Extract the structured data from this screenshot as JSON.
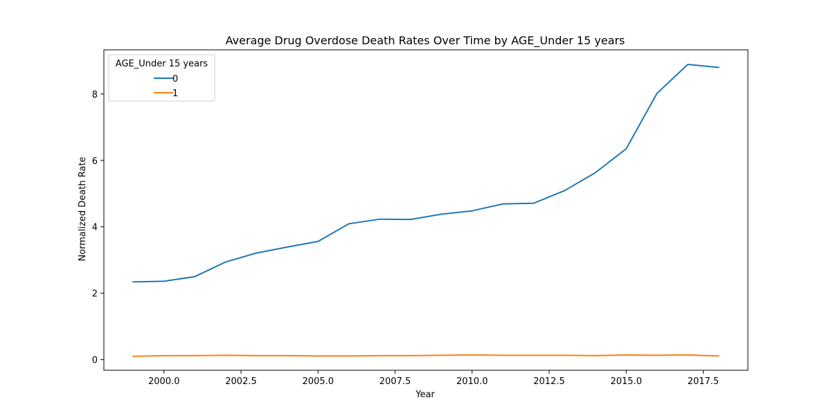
{
  "chart_data": {
    "type": "line",
    "title": "Average Drug Overdose Death Rates Over Time by AGE_Under 15 years",
    "xlabel": "Year",
    "ylabel": "Normalized Death Rate",
    "xlim": [
      1998.05,
      2018.95
    ],
    "ylim": [
      -0.32,
      9.33
    ],
    "x_ticks": [
      2000.0,
      2002.5,
      2005.0,
      2007.5,
      2010.0,
      2012.5,
      2015.0,
      2017.5
    ],
    "x_tick_labels": [
      "2000.0",
      "2002.5",
      "2005.0",
      "2007.5",
      "2010.0",
      "2012.5",
      "2015.0",
      "2017.5"
    ],
    "y_ticks": [
      0,
      2,
      4,
      6,
      8
    ],
    "y_tick_labels": [
      "0",
      "2",
      "4",
      "6",
      "8"
    ],
    "grid": false,
    "legend": {
      "title": "AGE_Under 15 years",
      "placement": "upper-left"
    },
    "x": [
      1999,
      2000,
      2001,
      2002,
      2003,
      2004,
      2005,
      2006,
      2007,
      2008,
      2009,
      2010,
      2011,
      2012,
      2013,
      2014,
      2015,
      2016,
      2017,
      2018
    ],
    "series": [
      {
        "name": "0",
        "color": "#1f77b4",
        "values": [
          2.34,
          2.36,
          2.5,
          2.94,
          3.21,
          3.39,
          3.56,
          4.09,
          4.23,
          4.22,
          4.38,
          4.48,
          4.69,
          4.71,
          5.09,
          5.63,
          6.35,
          8.02,
          8.89,
          8.8
        ]
      },
      {
        "name": "1",
        "color": "#ff7f0e",
        "values": [
          0.1,
          0.12,
          0.12,
          0.13,
          0.12,
          0.12,
          0.11,
          0.11,
          0.12,
          0.12,
          0.13,
          0.14,
          0.13,
          0.13,
          0.13,
          0.12,
          0.14,
          0.13,
          0.14,
          0.11
        ]
      }
    ]
  }
}
